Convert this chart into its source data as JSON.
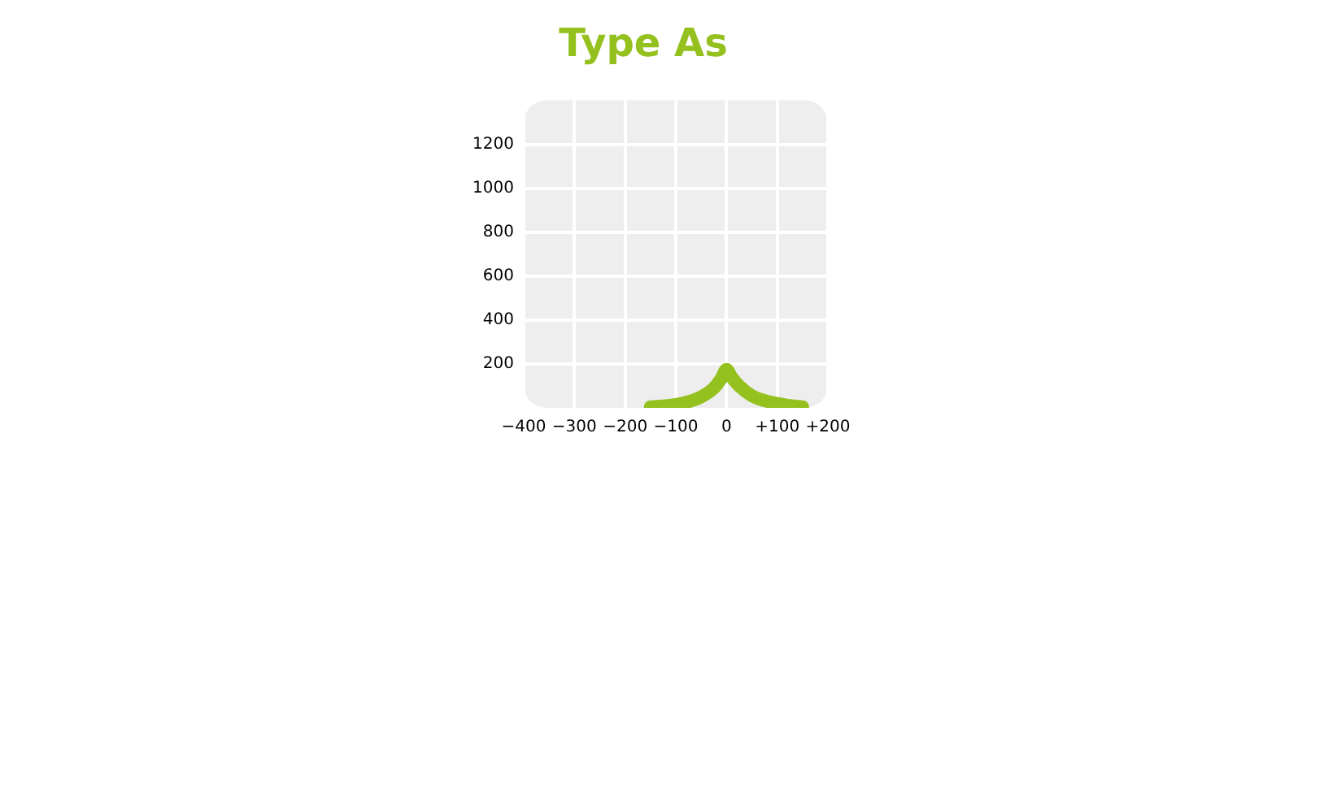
{
  "chart_data": {
    "type": "line",
    "title": "Type As",
    "x": [
      -150,
      -125,
      -100,
      -75,
      -50,
      -25,
      -10,
      0,
      10,
      25,
      50,
      75,
      100,
      125,
      150
    ],
    "series": [
      {
        "color": "#95c11f",
        "values": [
          5,
          8,
          15,
          28,
          50,
          90,
          135,
          175,
          140,
          100,
          55,
          33,
          20,
          10,
          5
        ]
      }
    ],
    "xlim": [
      -400,
      200
    ],
    "xticks": [
      {
        "value": -400,
        "label": "−400"
      },
      {
        "value": -300,
        "label": "−300"
      },
      {
        "value": -200,
        "label": "−200"
      },
      {
        "value": -100,
        "label": "−100"
      },
      0,
      {
        "value": 100,
        "label": "+100"
      },
      {
        "value": 200,
        "label": "+200"
      }
    ],
    "ylim": [
      0,
      1400
    ],
    "yticks": [
      200,
      400,
      600,
      800,
      1000,
      1200
    ],
    "grid": true,
    "legend": false,
    "marker": "none",
    "line_style": "solid"
  }
}
